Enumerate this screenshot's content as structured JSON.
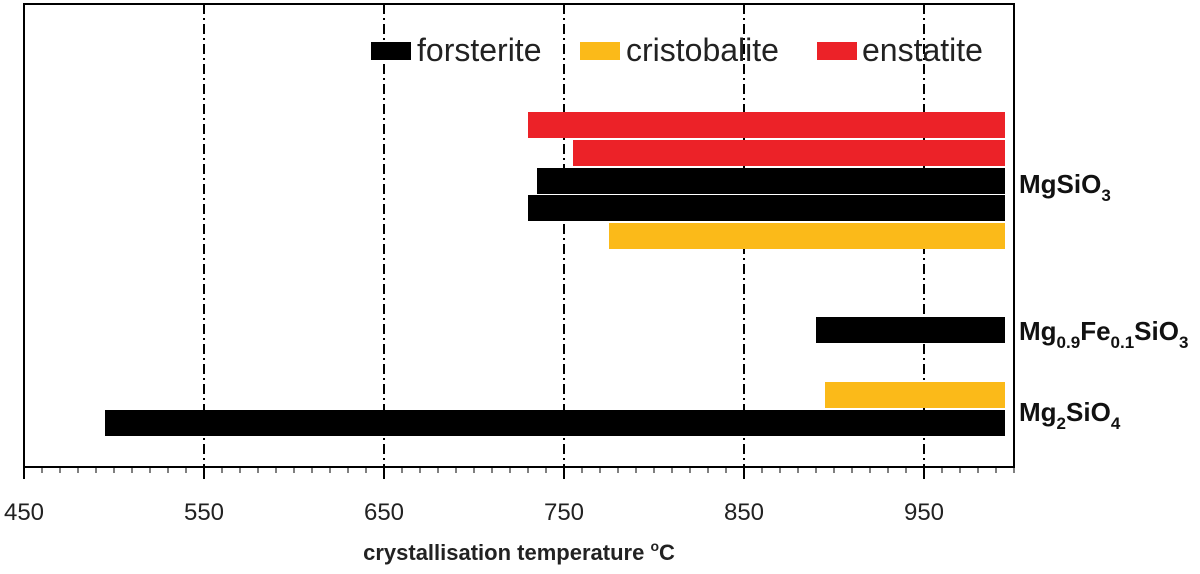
{
  "chart_data": {
    "type": "bar",
    "orientation": "horizontal",
    "xlabel": "crystallisation temperature",
    "xlabel_unit": "oC",
    "xlim": [
      450,
      1000
    ],
    "x_ticks": [
      450,
      550,
      650,
      750,
      850,
      950
    ],
    "gridlines": "vertical dash-dot at major ticks",
    "legend_position": "top-right",
    "series": [
      {
        "name": "forsterite",
        "color": "#000000"
      },
      {
        "name": "cristobalite",
        "color": "#FBBA19"
      },
      {
        "name": "enstatite",
        "color": "#EC2228"
      }
    ],
    "groups": [
      {
        "label": [
          "MgSiO",
          {
            "sub": "3"
          }
        ],
        "label_text": "MgSiO3"
      },
      {
        "label": [
          "Mg",
          {
            "sub": "0.9"
          },
          "Fe",
          {
            "sub": "0.1"
          },
          "SiO",
          {
            "sub": "3"
          }
        ],
        "label_text": "Mg0.9Fe0.1SiO3"
      },
      {
        "label": [
          "Mg",
          {
            "sub": "2"
          },
          "SiO",
          {
            "sub": "4"
          }
        ],
        "label_text": "Mg2SiO4"
      }
    ],
    "bars": [
      {
        "group": "MgSiO3",
        "series": "enstatite",
        "start": 730,
        "end": 995
      },
      {
        "group": "MgSiO3",
        "series": "enstatite",
        "start": 755,
        "end": 995
      },
      {
        "group": "MgSiO3",
        "series": "forsterite",
        "start": 735,
        "end": 995
      },
      {
        "group": "MgSiO3",
        "series": "forsterite",
        "start": 730,
        "end": 995
      },
      {
        "group": "MgSiO3",
        "series": "cristobalite",
        "start": 775,
        "end": 995
      },
      {
        "group": "Mg0.9Fe0.1SiO3",
        "series": "forsterite",
        "start": 890,
        "end": 995
      },
      {
        "group": "Mg2SiO4",
        "series": "cristobalite",
        "start": 895,
        "end": 995
      },
      {
        "group": "Mg2SiO4",
        "series": "forsterite",
        "start": 495,
        "end": 995
      }
    ]
  }
}
